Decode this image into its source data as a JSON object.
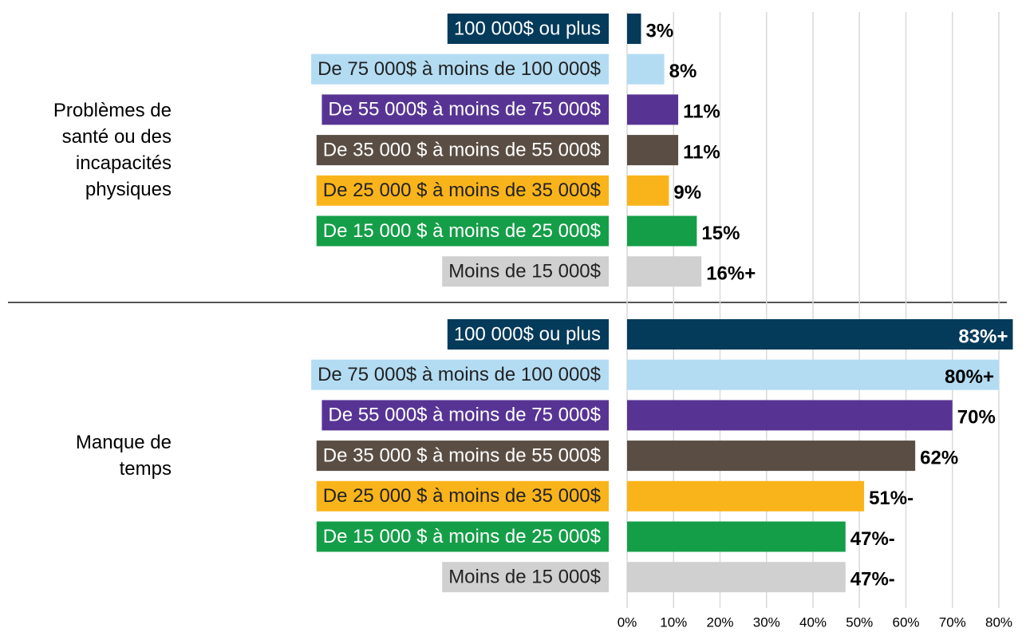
{
  "chart_data": {
    "type": "bar",
    "horizontal": true,
    "categories": [
      "100 000$ ou plus",
      "De 75 000$ à moins de 100 000$",
      "De 55 000$ à moins de 75 000$",
      "De 35 000 $ à moins de 55 000$",
      "De 25 000 $ à moins de 35 000$",
      "De 15 000 $ à moins de 25 000$",
      "Moins de 15 000$"
    ],
    "colors": [
      "#043a5a",
      "#b3dcf3",
      "#573494",
      "#5a4e44",
      "#fab41b",
      "#159e48",
      "#d0d0d0"
    ],
    "groups": [
      {
        "name": "Problèmes de santé ou des incapacités physiques",
        "values": [
          3,
          8,
          11,
          11,
          9,
          15,
          16
        ],
        "value_labels": [
          "3%",
          "8%",
          "11%",
          "11%",
          "9%",
          "15%",
          "16%+"
        ]
      },
      {
        "name": "Manque de temps",
        "values": [
          83,
          80,
          70,
          62,
          51,
          47,
          47
        ],
        "value_labels": [
          "83%+",
          "80%+",
          "70%",
          "62%",
          "51%-",
          "47%-",
          "47%-"
        ]
      }
    ],
    "xlim": [
      0,
      80
    ],
    "xticks": [
      {
        "value": 0,
        "label": "0%"
      },
      {
        "value": 10,
        "label": "10%"
      },
      {
        "value": 20,
        "label": "20%"
      },
      {
        "value": 30,
        "label": "30%"
      },
      {
        "value": 40,
        "label": "40%"
      },
      {
        "value": 50,
        "label": "50%"
      },
      {
        "value": 60,
        "label": "60%"
      },
      {
        "value": 70,
        "label": "70%"
      },
      {
        "value": 80,
        "label": "80%"
      }
    ],
    "grid": true
  }
}
